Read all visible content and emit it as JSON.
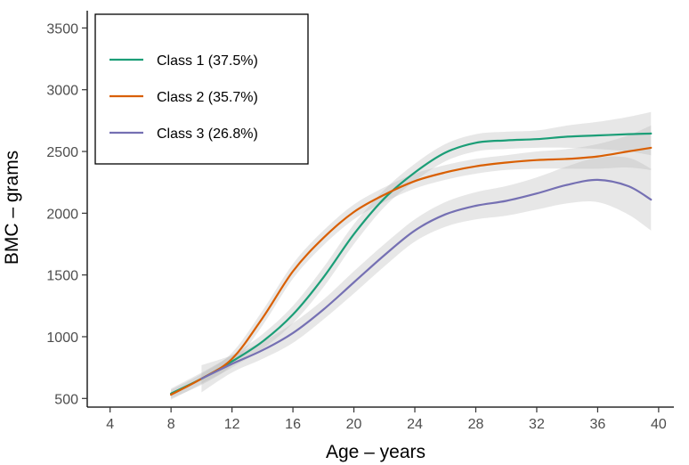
{
  "chart_data": {
    "type": "line",
    "xlabel": "Age – years",
    "ylabel": "BMC – grams",
    "xlim": [
      2.5,
      41
    ],
    "ylim": [
      430,
      3640
    ],
    "xticks": [
      4,
      8,
      12,
      16,
      20,
      24,
      28,
      32,
      36,
      40
    ],
    "yticks": [
      500,
      1000,
      1500,
      2000,
      2500,
      3000,
      3500
    ],
    "grid": false,
    "legend_position": "top-left",
    "series": [
      {
        "name": "Class 1 (37.5%)",
        "color": "#1b9e77",
        "x": [
          8,
          10,
          12,
          14,
          16,
          18,
          20,
          22,
          24,
          26,
          28,
          30,
          32,
          34,
          36,
          38,
          39.5
        ],
        "y": [
          540,
          660,
          800,
          960,
          1180,
          1480,
          1830,
          2120,
          2330,
          2490,
          2570,
          2590,
          2600,
          2620,
          2630,
          2640,
          2645
        ],
        "band": [
          [
            8,
            500,
            580
          ],
          [
            10,
            610,
            710
          ],
          [
            12,
            750,
            850
          ],
          [
            14,
            900,
            1020
          ],
          [
            16,
            1110,
            1250
          ],
          [
            18,
            1400,
            1560
          ],
          [
            20,
            1750,
            1910
          ],
          [
            22,
            2050,
            2190
          ],
          [
            24,
            2260,
            2400
          ],
          [
            26,
            2420,
            2560
          ],
          [
            28,
            2500,
            2640
          ],
          [
            30,
            2520,
            2660
          ],
          [
            32,
            2530,
            2670
          ],
          [
            34,
            2530,
            2710
          ],
          [
            36,
            2520,
            2740
          ],
          [
            38,
            2500,
            2780
          ],
          [
            39.5,
            2470,
            2820
          ]
        ]
      },
      {
        "name": "Class 2 (35.7%)",
        "color": "#d95f02",
        "x": [
          8,
          10,
          12,
          14,
          16,
          18,
          20,
          22,
          24,
          26,
          28,
          30,
          32,
          34,
          36,
          38,
          39.5
        ],
        "y": [
          530,
          660,
          820,
          1150,
          1530,
          1800,
          2010,
          2150,
          2260,
          2330,
          2380,
          2410,
          2430,
          2440,
          2460,
          2500,
          2530
        ],
        "band": [
          [
            8,
            490,
            570
          ],
          [
            10,
            620,
            700
          ],
          [
            12,
            770,
            870
          ],
          [
            14,
            1090,
            1210
          ],
          [
            16,
            1470,
            1590
          ],
          [
            18,
            1740,
            1860
          ],
          [
            20,
            1950,
            2070
          ],
          [
            22,
            2090,
            2210
          ],
          [
            24,
            2200,
            2320
          ],
          [
            26,
            2270,
            2390
          ],
          [
            28,
            2320,
            2440
          ],
          [
            30,
            2350,
            2470
          ],
          [
            32,
            2360,
            2500
          ],
          [
            34,
            2360,
            2520
          ],
          [
            36,
            2360,
            2560
          ],
          [
            38,
            2370,
            2630
          ],
          [
            39.5,
            2350,
            2710
          ]
        ]
      },
      {
        "name": "Class 3 (26.8%)",
        "color": "#7570b3",
        "x": [
          10,
          12,
          14,
          16,
          18,
          20,
          22,
          24,
          26,
          28,
          30,
          32,
          34,
          36,
          38,
          39.5
        ],
        "y": [
          660,
          780,
          890,
          1030,
          1220,
          1440,
          1660,
          1860,
          1990,
          2060,
          2100,
          2160,
          2230,
          2270,
          2220,
          2110
        ],
        "band": [
          [
            10,
            550,
            770
          ],
          [
            12,
            710,
            850
          ],
          [
            14,
            820,
            960
          ],
          [
            16,
            950,
            1110
          ],
          [
            18,
            1140,
            1300
          ],
          [
            20,
            1350,
            1530
          ],
          [
            22,
            1570,
            1750
          ],
          [
            24,
            1770,
            1950
          ],
          [
            26,
            1890,
            2090
          ],
          [
            28,
            1950,
            2170
          ],
          [
            30,
            1980,
            2220
          ],
          [
            32,
            2030,
            2290
          ],
          [
            34,
            2080,
            2380
          ],
          [
            36,
            2090,
            2450
          ],
          [
            38,
            1990,
            2450
          ],
          [
            39.5,
            1860,
            2360
          ]
        ]
      }
    ]
  }
}
